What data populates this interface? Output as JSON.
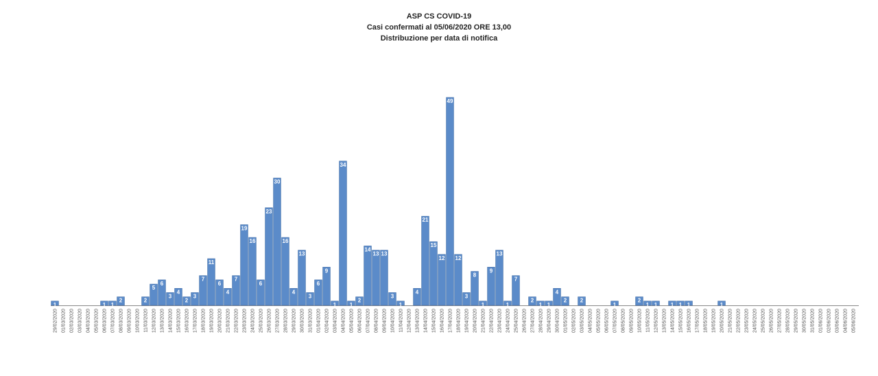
{
  "chart_data": {
    "type": "bar",
    "title": "ASP CS COVID-19",
    "subtitle": "Casi confermati al  05/06/2020 ORE 13,00",
    "subtitle2": "Distribuzione per data di notifica",
    "color": "#5b8bc9",
    "categories": [
      "29/02/2020",
      "01/03/2020",
      "02/03/2020",
      "03/03/2020",
      "04/03/2020",
      "05/03/2020",
      "06/03/2020",
      "07/03/2020",
      "08/03/2020",
      "09/03/2020",
      "10/03/2020",
      "11/03/2020",
      "12/03/2020",
      "13/03/2020",
      "14/03/2020",
      "15/03/2020",
      "16/03/2020",
      "17/03/2020",
      "18/03/2020",
      "19/03/2020",
      "20/03/2020",
      "21/03/2020",
      "22/03/2020",
      "23/03/2020",
      "24/03/2020",
      "25/03/2020",
      "26/03/2020",
      "27/03/2020",
      "28/03/2020",
      "29/03/2020",
      "30/03/2020",
      "31/03/2020",
      "01/04/2020",
      "02/04/2020",
      "03/04/2020",
      "04/04/2020",
      "05/04/2020",
      "06/04/2020",
      "07/04/2020",
      "08/04/2020",
      "09/04/2020",
      "10/04/2020",
      "11/04/2020",
      "12/04/2020",
      "13/04/2020",
      "14/04/2020",
      "15/04/2020",
      "16/04/2020",
      "17/04/2020",
      "18/04/2020",
      "19/04/2020",
      "20/04/2020",
      "21/04/2020",
      "22/04/2020",
      "23/04/2020",
      "24/04/2020",
      "25/04/2020",
      "26/04/2020",
      "27/04/2020",
      "28/04/2020",
      "29/04/2020",
      "30/04/2020",
      "01/05/2020",
      "02/05/2020",
      "03/05/2020",
      "04/05/2020",
      "05/05/2020",
      "06/05/2020",
      "07/05/2020",
      "08/05/2020",
      "09/05/2020",
      "10/05/2020",
      "11/05/2020",
      "12/05/2020",
      "13/05/2020",
      "14/05/2020",
      "15/05/2020",
      "16/05/2020",
      "17/05/2020",
      "18/05/2020",
      "19/05/2020",
      "20/05/2020",
      "21/05/2020",
      "22/05/2020",
      "23/05/2020",
      "24/05/2020",
      "25/05/2020",
      "26/05/2020",
      "27/05/2020",
      "28/05/2020",
      "29/05/2020",
      "30/05/2020",
      "31/05/2020",
      "01/06/2020",
      "02/06/2020",
      "03/06/2020",
      "04/06/2020",
      "05/06/2020"
    ],
    "values": [
      1,
      0,
      0,
      0,
      0,
      0,
      1,
      1,
      2,
      0,
      0,
      2,
      5,
      6,
      3,
      4,
      2,
      3,
      7,
      11,
      6,
      4,
      7,
      19,
      16,
      6,
      23,
      30,
      16,
      4,
      13,
      3,
      6,
      9,
      1,
      34,
      1,
      2,
      14,
      13,
      13,
      3,
      1,
      0,
      4,
      21,
      15,
      12,
      49,
      12,
      3,
      8,
      1,
      9,
      13,
      1,
      7,
      0,
      2,
      1,
      1,
      4,
      2,
      0,
      2,
      0,
      0,
      0,
      1,
      0,
      0,
      2,
      1,
      1,
      0,
      1,
      1,
      1,
      0,
      0,
      0,
      1,
      0,
      0,
      0,
      0,
      0,
      0,
      0,
      0,
      0,
      0,
      0,
      0,
      0,
      0,
      0,
      0
    ]
  }
}
